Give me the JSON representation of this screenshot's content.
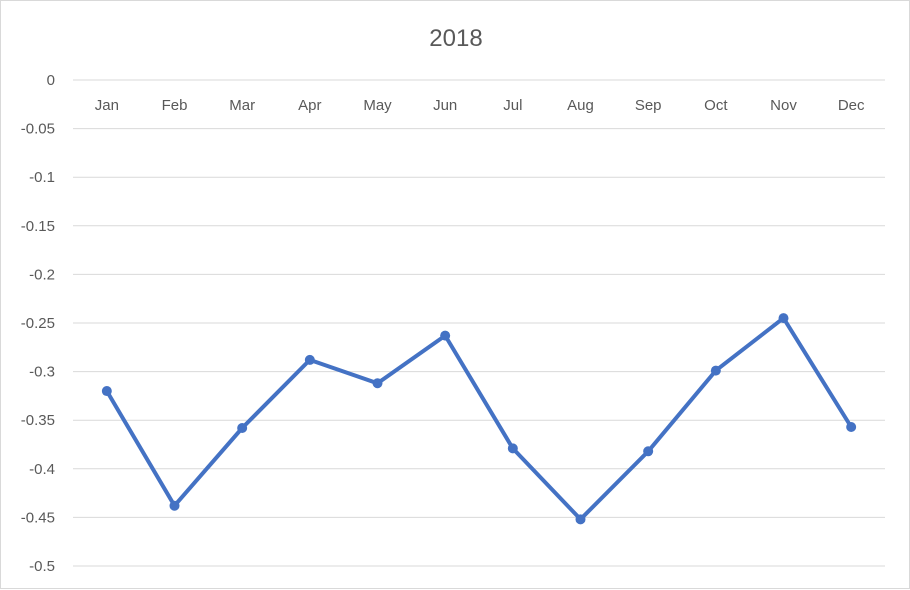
{
  "chart_data": {
    "type": "line",
    "title": "2018",
    "xlabel": "",
    "ylabel": "",
    "categories": [
      "Jan",
      "Feb",
      "Mar",
      "Apr",
      "May",
      "Jun",
      "Jul",
      "Aug",
      "Sep",
      "Oct",
      "Nov",
      "Dec"
    ],
    "y_ticks": [
      "0",
      "-0.05",
      "-0.1",
      "-0.15",
      "-0.2",
      "-0.25",
      "-0.3",
      "-0.35",
      "-0.4",
      "-0.45",
      "-0.5"
    ],
    "ylim": [
      -0.5,
      0
    ],
    "x_axis_position": "top",
    "grid": true,
    "legend": "none",
    "series": [
      {
        "color": "#4472c4",
        "values": [
          -0.32,
          -0.438,
          -0.358,
          -0.288,
          -0.312,
          -0.263,
          -0.379,
          -0.452,
          -0.382,
          -0.299,
          -0.245,
          -0.357
        ]
      }
    ]
  }
}
